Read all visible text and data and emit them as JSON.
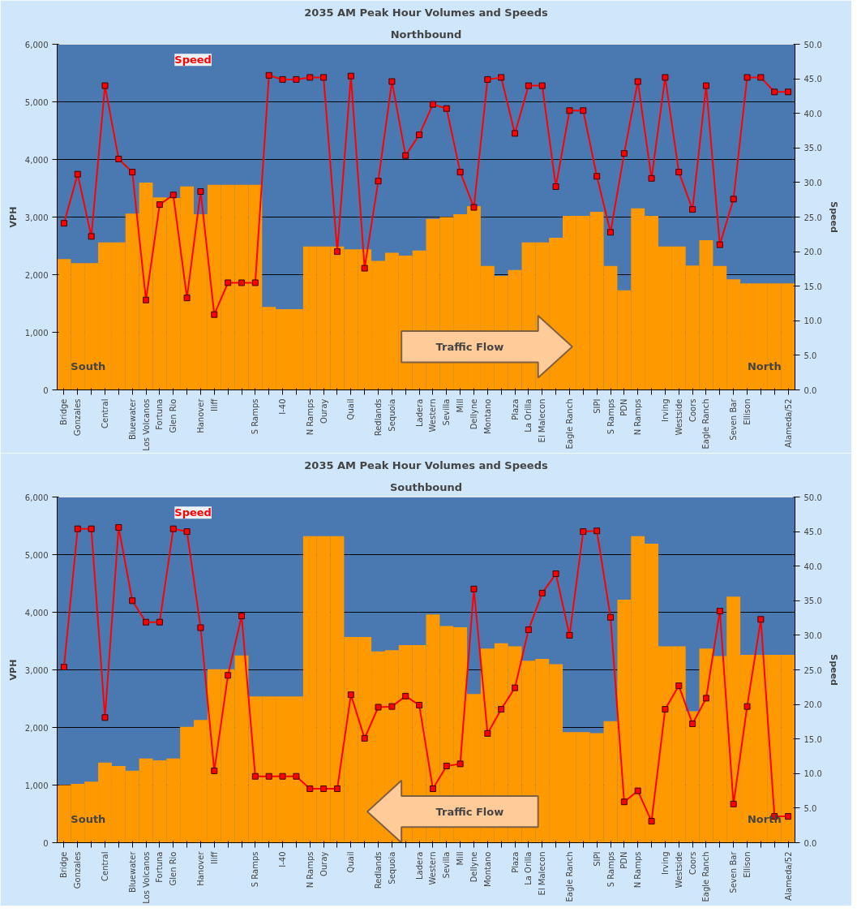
{
  "chart_data": [
    {
      "type": "bar",
      "title": "2035 AM Peak Hour Volumes and Speeds",
      "subtitle": "Northbound",
      "ylabel": "VPH",
      "y2label": "Speed",
      "categories": [
        "Bridge",
        "Gonzales",
        null,
        "Central",
        null,
        "Bluewater",
        "Los Volcanos",
        "Fortuna",
        "Glen Rio",
        null,
        "Hanover",
        "Iliff",
        null,
        null,
        "S Ramps",
        null,
        "I-40",
        null,
        "N Ramps",
        "Ouray",
        null,
        "Quail",
        null,
        "Redlands",
        "Sequoia",
        null,
        "Ladera",
        "Western",
        "Sevilla",
        "Mill",
        "Dellyne",
        "Montano",
        null,
        "Plaza",
        "La Orilla",
        "El Malecon",
        null,
        "Eagle Ranch",
        null,
        "SIPI",
        "S Ramps",
        "PDN",
        "N Ramps",
        null,
        "Irving",
        "Westside",
        "Coors",
        "Eagle Ranch",
        null,
        "Seven Bar",
        "Ellison",
        null,
        null,
        "Alameda/52"
      ],
      "series": [
        {
          "color": "#ff9900",
          "values": [
            2270,
            2200,
            2200,
            2560,
            2560,
            3060,
            3600,
            3340,
            3330,
            3530,
            3050,
            3560,
            3560,
            3560,
            3560,
            1440,
            1400,
            1400,
            2490,
            2490,
            2490,
            2440,
            2440,
            2240,
            2380,
            2330,
            2420,
            2970,
            3000,
            3050,
            3190,
            2150,
            1980,
            2080,
            2560,
            2560,
            2640,
            3020,
            3020,
            3090,
            2150,
            1730,
            3150,
            3020,
            2490,
            2490,
            2160,
            2600,
            2150,
            1920,
            1850,
            1850,
            1850,
            1850
          ]
        },
        {
          "type": "line",
          "name": "Speed",
          "axis": "y2",
          "color": "#ff0000",
          "values": [
            24.1,
            31.2,
            22.2,
            44.0,
            33.4,
            31.5,
            13.0,
            26.8,
            28.2,
            13.3,
            28.7,
            10.9,
            15.5,
            15.5,
            15.5,
            45.5,
            44.9,
            44.9,
            45.2,
            45.2,
            20.0,
            45.4,
            17.6,
            30.2,
            44.6,
            33.9,
            36.9,
            41.3,
            40.7,
            31.5,
            26.4,
            44.9,
            45.2,
            37.1,
            44.0,
            44.0,
            29.4,
            40.4,
            40.4,
            30.9,
            22.8,
            34.2,
            44.6,
            30.6,
            45.2,
            31.5,
            26.1,
            44.0,
            21.0,
            27.6,
            45.2,
            45.2,
            43.1,
            43.1
          ]
        }
      ],
      "ylim": [
        0,
        6000
      ],
      "yticks": [
        0,
        {
          "value": 1000,
          "label": "1,000"
        },
        {
          "value": 2000,
          "label": "2,000"
        },
        {
          "value": 3000,
          "label": "3,000"
        },
        {
          "value": 4000,
          "label": "4,000"
        },
        {
          "value": 5000,
          "label": "5,000"
        },
        {
          "value": 6000,
          "label": "6,000"
        }
      ],
      "y2lim": [
        0,
        50
      ],
      "y2ticks": [
        {
          "value": 0,
          "label": "0.0"
        },
        {
          "value": 5,
          "label": "5.0"
        },
        {
          "value": 10,
          "label": "10.0"
        },
        {
          "value": 15,
          "label": "15.0"
        },
        {
          "value": 20,
          "label": "20.0"
        },
        {
          "value": 25,
          "label": "25.0"
        },
        {
          "value": 30,
          "label": "30.0"
        },
        {
          "value": 35,
          "label": "35.0"
        },
        {
          "value": 40,
          "label": "40.0"
        },
        {
          "value": 45,
          "label": "45.0"
        },
        {
          "value": 50,
          "label": "50.0"
        }
      ],
      "grid": "y",
      "marker": "square",
      "annotations": [
        "South",
        "Traffic Flow",
        "North"
      ]
    },
    {
      "type": "bar",
      "title": "2035 AM Peak Hour Volumes and Speeds",
      "subtitle": "Southbound",
      "ylabel": "VPH",
      "y2label": "Speed",
      "categories": [
        "Bridge",
        "Gonzales",
        null,
        "Central",
        null,
        "Bluewater",
        "Los Volcanos",
        "Fortuna",
        "Glen Rio",
        null,
        "Hanover",
        "Iliff",
        null,
        null,
        "S Ramps",
        null,
        "I-40",
        null,
        "N Ramps",
        "Ouray",
        null,
        "Quail",
        null,
        "Redlands",
        "Sequoia",
        null,
        "Ladera",
        "Western",
        "Sevilla",
        "Mill",
        "Dellyne",
        "Montano",
        null,
        "Plaza",
        "La Orilla",
        "El Malecon",
        null,
        "Eagle Ranch",
        null,
        "SIPI",
        "S Ramps",
        "PDN",
        "N Ramps",
        null,
        "Irving",
        "Westside",
        "Coors",
        "Eagle Ranch",
        null,
        "Seven Bar",
        "Ellison",
        null,
        null,
        "Alameda/52"
      ],
      "series": [
        {
          "color": "#ff9900",
          "values": [
            1000,
            1020,
            1060,
            1390,
            1330,
            1250,
            1460,
            1430,
            1460,
            2010,
            2130,
            3010,
            3010,
            3250,
            2540,
            2540,
            2540,
            2540,
            5320,
            5320,
            5320,
            3570,
            3570,
            3320,
            3340,
            3430,
            3430,
            3960,
            3760,
            3740,
            2580,
            3370,
            3460,
            3410,
            3160,
            3190,
            3100,
            1920,
            1920,
            1900,
            2110,
            4220,
            5320,
            5190,
            3410,
            3410,
            2280,
            3370,
            3240,
            4270,
            3260,
            3260,
            3260,
            3260
          ]
        },
        {
          "type": "line",
          "name": "Speed",
          "axis": "y2",
          "color": "#ff0000",
          "values": [
            25.4,
            45.4,
            45.4,
            18.1,
            45.6,
            35.0,
            31.9,
            31.9,
            45.4,
            45.0,
            31.1,
            10.4,
            24.2,
            32.8,
            9.6,
            9.6,
            9.6,
            9.6,
            7.8,
            7.8,
            7.8,
            21.4,
            15.1,
            19.6,
            19.7,
            21.2,
            19.9,
            7.8,
            11.1,
            11.4,
            36.7,
            15.8,
            19.3,
            22.4,
            30.8,
            36.1,
            38.9,
            30.0,
            45.0,
            45.1,
            32.6,
            5.9,
            7.5,
            3.1,
            19.3,
            22.7,
            17.2,
            20.9,
            33.5,
            5.6,
            19.7,
            32.3,
            3.8,
            3.8
          ]
        }
      ],
      "ylim": [
        0,
        6000
      ],
      "yticks": [
        0,
        {
          "value": 1000,
          "label": "1,000"
        },
        {
          "value": 2000,
          "label": "2,000"
        },
        {
          "value": 3000,
          "label": "3,000"
        },
        {
          "value": 4000,
          "label": "4,000"
        },
        {
          "value": 5000,
          "label": "5,000"
        },
        {
          "value": 6000,
          "label": "6,000"
        }
      ],
      "y2lim": [
        0,
        50
      ],
      "y2ticks": [
        {
          "value": 0,
          "label": "0.0"
        },
        {
          "value": 5,
          "label": "5.0"
        },
        {
          "value": 10,
          "label": "10.0"
        },
        {
          "value": 15,
          "label": "15.0"
        },
        {
          "value": 20,
          "label": "20.0"
        },
        {
          "value": 25,
          "label": "25.0"
        },
        {
          "value": 30,
          "label": "30.0"
        },
        {
          "value": 35,
          "label": "35.0"
        },
        {
          "value": 40,
          "label": "40.0"
        },
        {
          "value": 45,
          "label": "45.0"
        },
        {
          "value": 50,
          "label": "50.0"
        }
      ],
      "grid": "y",
      "marker": "square",
      "annotations": [
        "South",
        "Traffic Flow",
        "North"
      ]
    }
  ]
}
